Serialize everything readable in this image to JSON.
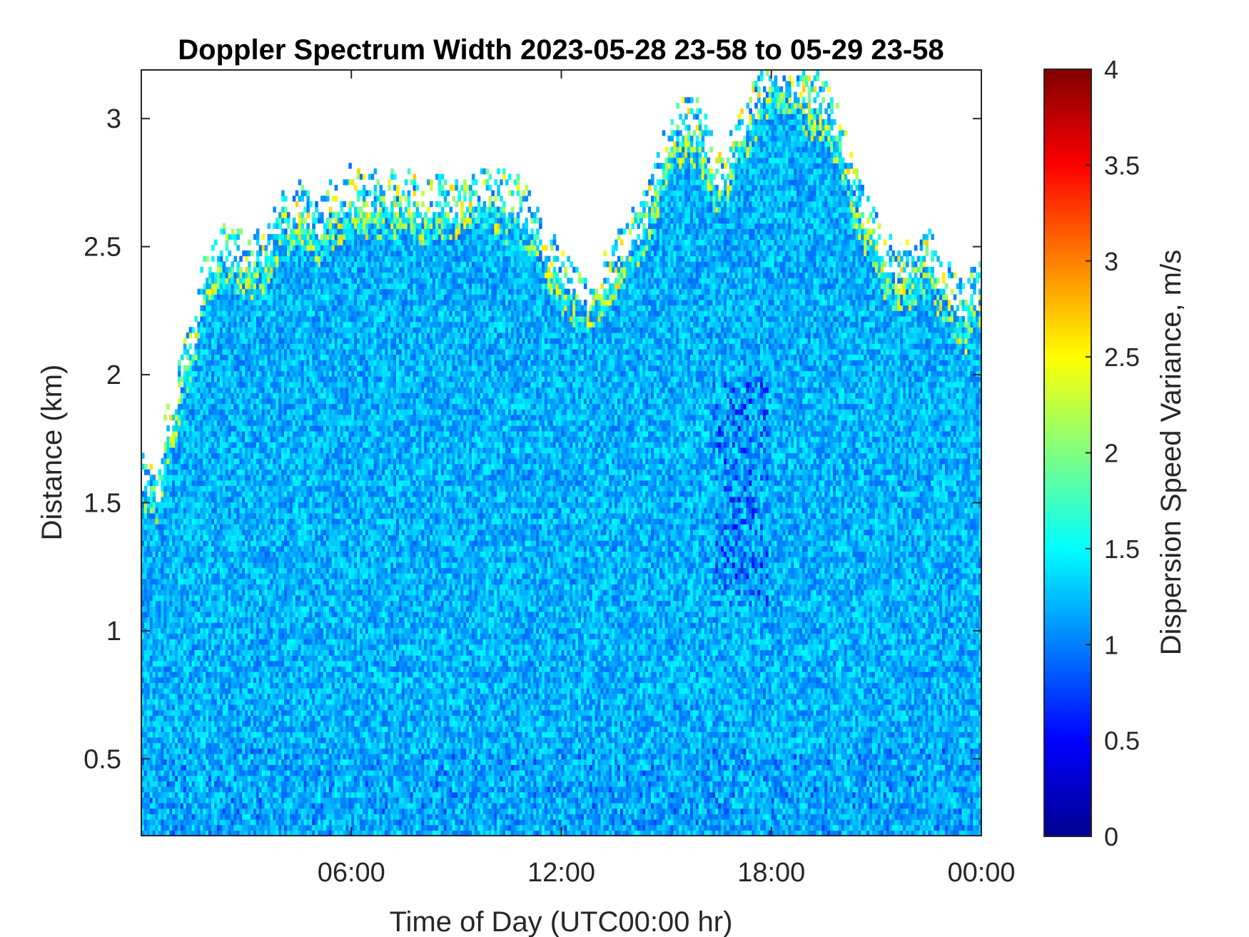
{
  "chart_data": {
    "type": "heatmap",
    "title": "Doppler Spectrum Width 2023-05-28 23-58 to 05-29 23-58",
    "xlabel": "Time of Day (UTC00:00 hr)",
    "ylabel": "Distance (km)",
    "colorbar_label": "Dispersion Speed Variance, m/s",
    "colormap": "jet",
    "xlim_hours": [
      0,
      24
    ],
    "ylim": [
      0.2,
      3.19
    ],
    "clim": [
      0,
      4
    ],
    "x_ticks": [
      {
        "value": 6,
        "label": "06:00"
      },
      {
        "value": 12,
        "label": "12:00"
      },
      {
        "value": 18,
        "label": "18:00"
      },
      {
        "value": 24,
        "label": "00:00"
      }
    ],
    "y_ticks": [
      {
        "value": 0.5,
        "label": "0.5"
      },
      {
        "value": 1,
        "label": "1"
      },
      {
        "value": 1.5,
        "label": "1.5"
      },
      {
        "value": 2,
        "label": "2"
      },
      {
        "value": 2.5,
        "label": "2.5"
      },
      {
        "value": 3,
        "label": "3"
      }
    ],
    "colorbar_ticks": [
      {
        "value": 0,
        "label": "0"
      },
      {
        "value": 0.5,
        "label": "0.5"
      },
      {
        "value": 1,
        "label": "1"
      },
      {
        "value": 1.5,
        "label": "1.5"
      },
      {
        "value": 2,
        "label": "2"
      },
      {
        "value": 2.5,
        "label": "2.5"
      },
      {
        "value": 3,
        "label": "3"
      },
      {
        "value": 3.5,
        "label": "3.5"
      },
      {
        "value": 4,
        "label": "4"
      }
    ],
    "data_top_km": [
      [
        0.0,
        1.55
      ],
      [
        0.5,
        1.5
      ],
      [
        0.7,
        1.72
      ],
      [
        1.0,
        1.85
      ],
      [
        1.5,
        2.1
      ],
      [
        1.8,
        2.35
      ],
      [
        2.2,
        2.45
      ],
      [
        3.0,
        2.4
      ],
      [
        3.5,
        2.45
      ],
      [
        4.0,
        2.55
      ],
      [
        4.5,
        2.6
      ],
      [
        5.0,
        2.55
      ],
      [
        5.5,
        2.6
      ],
      [
        6.0,
        2.65
      ],
      [
        7.0,
        2.65
      ],
      [
        8.0,
        2.62
      ],
      [
        9.0,
        2.63
      ],
      [
        10.0,
        2.65
      ],
      [
        11.0,
        2.6
      ],
      [
        11.5,
        2.45
      ],
      [
        12.0,
        2.35
      ],
      [
        12.7,
        2.25
      ],
      [
        13.5,
        2.35
      ],
      [
        14.0,
        2.5
      ],
      [
        14.5,
        2.6
      ],
      [
        15.0,
        2.85
      ],
      [
        15.5,
        2.95
      ],
      [
        16.0,
        2.9
      ],
      [
        16.5,
        2.7
      ],
      [
        17.0,
        2.85
      ],
      [
        17.5,
        3.0
      ],
      [
        18.0,
        3.15
      ],
      [
        18.5,
        3.1
      ],
      [
        19.0,
        3.05
      ],
      [
        19.5,
        3.0
      ],
      [
        20.0,
        2.9
      ],
      [
        20.5,
        2.6
      ],
      [
        21.0,
        2.5
      ],
      [
        21.5,
        2.35
      ],
      [
        22.5,
        2.4
      ],
      [
        23.0,
        2.3
      ],
      [
        23.5,
        2.2
      ],
      [
        24.0,
        2.3
      ]
    ],
    "typical_value_range": [
      0.9,
      1.5
    ]
  }
}
